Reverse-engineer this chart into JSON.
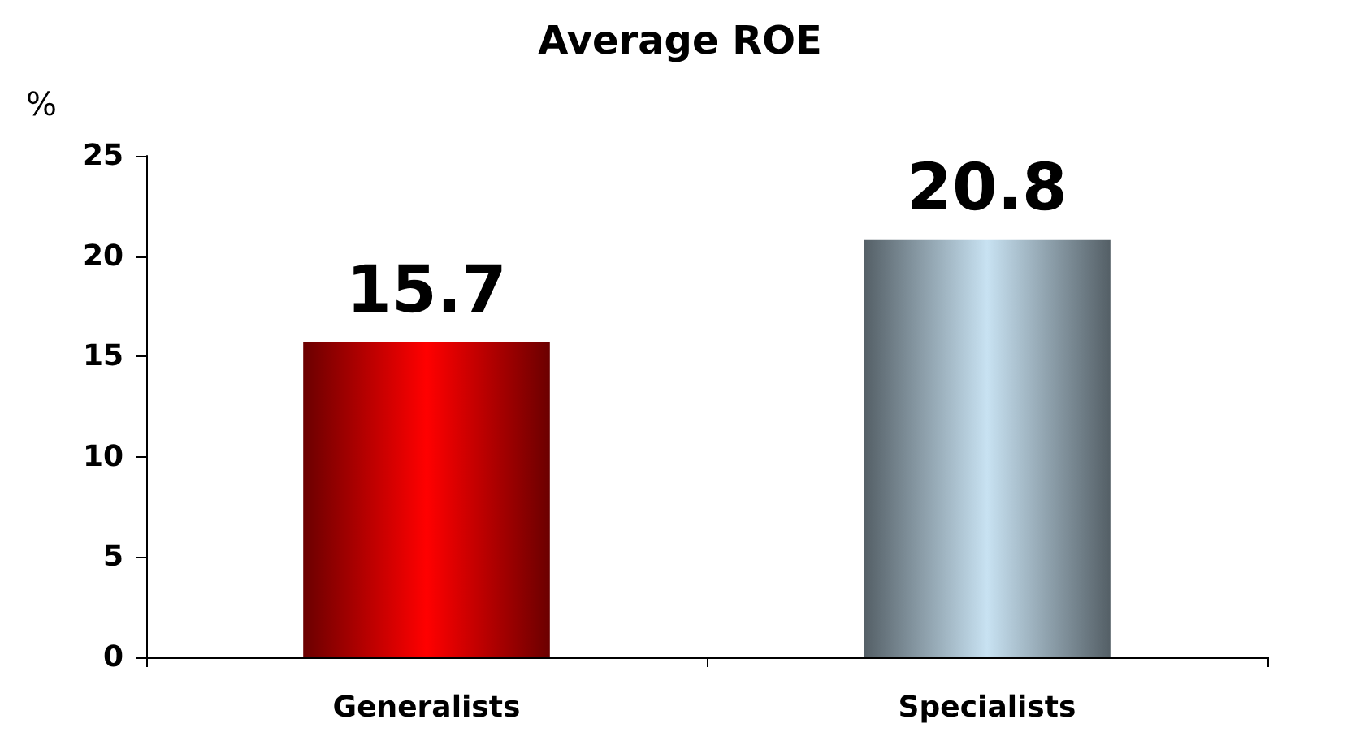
{
  "chart_data": {
    "type": "bar",
    "title": "Average ROE",
    "ylabel": "%",
    "categories": [
      "Generalists",
      "Specialists"
    ],
    "values": [
      15.7,
      20.8
    ],
    "colors": [
      "#ff0000",
      "#c8e2f2"
    ],
    "ylim": [
      0,
      25
    ],
    "yticks": [
      0,
      5,
      10,
      15,
      20,
      25
    ],
    "grid": false,
    "data_labels": true
  }
}
